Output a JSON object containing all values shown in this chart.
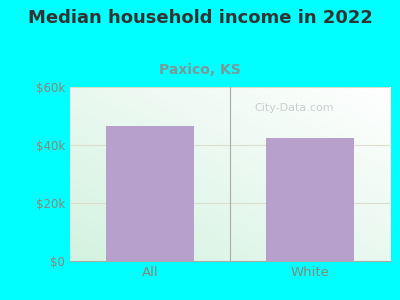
{
  "title": "Median household income in 2022",
  "subtitle": "Paxico, KS",
  "categories": [
    "All",
    "White"
  ],
  "values": [
    46500,
    42500
  ],
  "bar_color": "#b8a0cc",
  "ylim": [
    0,
    60000
  ],
  "yticks": [
    0,
    20000,
    40000,
    60000
  ],
  "ytick_labels": [
    "$0",
    "$20k",
    "$40k",
    "$60k"
  ],
  "bg_outer": "#00ffff",
  "title_fontsize": 13,
  "title_color": "#333333",
  "subtitle_fontsize": 10,
  "subtitle_color": "#7a9a9a",
  "tick_label_color": "#888878",
  "grid_color": "#ddddcc",
  "divider_color": "#aaaaaa",
  "watermark": "City-Data.com",
  "watermark_color": "#c0c8c8"
}
